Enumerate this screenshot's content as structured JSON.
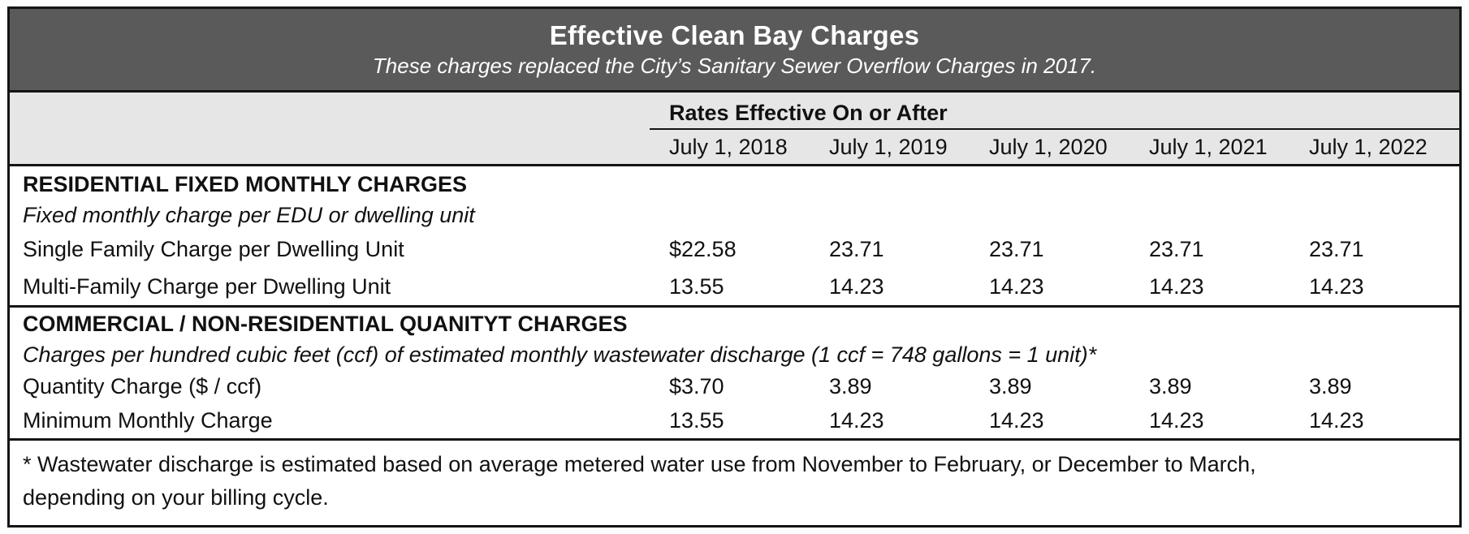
{
  "document": {
    "title": "Effective Clean Bay Charges",
    "subtitle": "These charges replaced the City’s Sanitary Sewer Overflow Charges in 2017.",
    "rates_header": "Rates Effective On or After",
    "columns": [
      "July 1, 2018",
      "July 1, 2019",
      "July 1, 2020",
      "July 1, 2021",
      "July 1, 2022"
    ],
    "sections": [
      {
        "heading": "RESIDENTIAL FIXED MONTHLY CHARGES",
        "description": "Fixed monthly charge per EDU or dwelling unit",
        "rows": [
          {
            "label": "Single Family Charge per Dwelling Unit",
            "values": [
              "$22.58",
              "23.71",
              "23.71",
              "23.71",
              "23.71"
            ]
          },
          {
            "label": "Multi-Family Charge per Dwelling Unit",
            "values": [
              "13.55",
              "14.23",
              "14.23",
              "14.23",
              "14.23"
            ]
          }
        ]
      },
      {
        "heading": "COMMERCIAL / NON-RESIDENTIAL QUANITYT CHARGES",
        "description": "Charges per hundred cubic feet (ccf) of estimated monthly wastewater discharge (1 ccf = 748 gallons = 1 unit)*",
        "rows": [
          {
            "label": "Quantity Charge ($ / ccf)",
            "values": [
              "$3.70",
              "3.89",
              "3.89",
              "3.89",
              "3.89"
            ]
          },
          {
            "label": "Minimum Monthly Charge",
            "values": [
              "13.55",
              "14.23",
              "14.23",
              "14.23",
              "14.23"
            ]
          }
        ]
      }
    ],
    "footnote_line1": "* Wastewater discharge is estimated based on average metered water use from November to February, or December to March,",
    "footnote_line2": "depending on your billing cycle.",
    "colors": {
      "title_band_bg": "#5a5a5a",
      "title_text": "#ffffff",
      "rates_band_bg": "#e6e6e6",
      "border": "#141414",
      "body_text": "#111111"
    }
  }
}
